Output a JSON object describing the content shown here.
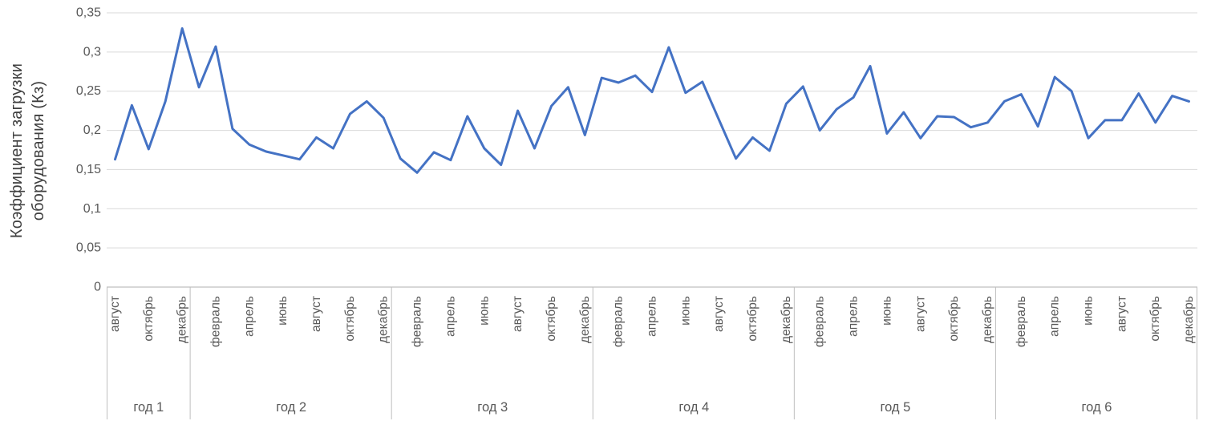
{
  "chart_data": {
    "type": "line",
    "title": "",
    "series_name": "Коэффициент загрузки оборудования",
    "series_color": "#4472C4",
    "grid_color": "#d9d9d9",
    "axis_color": "#bfbfbf",
    "label_color": "#595959",
    "y_axis": {
      "title": "Коэффициент загрузки\nоборудования (Кз)",
      "tick_labels": [
        "0",
        "0,05",
        "0,1",
        "0,15",
        "0,2",
        "0,25",
        "0,3",
        "0,35"
      ],
      "min": 0,
      "max": 0.35,
      "tick_step": 0.05,
      "grid": true
    },
    "x_axis": {
      "groups": [
        {
          "label": "год 1",
          "values": [
            0.163,
            0.232,
            0.176,
            0.237,
            0.33
          ],
          "ticks": [
            {
              "i": 0,
              "t": "август"
            },
            {
              "i": 2,
              "t": "октябрь"
            },
            {
              "i": 4,
              "t": "декабрь"
            }
          ]
        },
        {
          "label": "год 2",
          "values": [
            0.255,
            0.307,
            0.202,
            0.182,
            0.173,
            0.168,
            0.163,
            0.191,
            0.177,
            0.221,
            0.237,
            0.216
          ],
          "ticks": [
            {
              "i": 1,
              "t": "февраль"
            },
            {
              "i": 3,
              "t": "апрель"
            },
            {
              "i": 5,
              "t": "июнь"
            },
            {
              "i": 7,
              "t": "август"
            },
            {
              "i": 9,
              "t": "октябрь"
            },
            {
              "i": 11,
              "t": "декабрь"
            }
          ]
        },
        {
          "label": "год 3",
          "values": [
            0.164,
            0.146,
            0.172,
            0.162,
            0.218,
            0.177,
            0.156,
            0.225,
            0.177,
            0.231,
            0.255,
            0.194
          ],
          "ticks": [
            {
              "i": 1,
              "t": "февраль"
            },
            {
              "i": 3,
              "t": "апрель"
            },
            {
              "i": 5,
              "t": "июнь"
            },
            {
              "i": 7,
              "t": "август"
            },
            {
              "i": 9,
              "t": "октябрь"
            },
            {
              "i": 11,
              "t": "декабрь"
            }
          ]
        },
        {
          "label": "год 4",
          "values": [
            0.267,
            0.261,
            0.27,
            0.249,
            0.306,
            0.248,
            0.262,
            0.213,
            0.164,
            0.191,
            0.174,
            0.234
          ],
          "ticks": [
            {
              "i": 1,
              "t": "февраль"
            },
            {
              "i": 3,
              "t": "апрель"
            },
            {
              "i": 5,
              "t": "июнь"
            },
            {
              "i": 7,
              "t": "август"
            },
            {
              "i": 9,
              "t": "октябрь"
            },
            {
              "i": 11,
              "t": "декабрь"
            }
          ]
        },
        {
          "label": "год 5",
          "values": [
            0.256,
            0.2,
            0.227,
            0.242,
            0.282,
            0.196,
            0.223,
            0.19,
            0.218,
            0.217,
            0.204,
            0.21
          ],
          "ticks": [
            {
              "i": 1,
              "t": "февраль"
            },
            {
              "i": 3,
              "t": "апрель"
            },
            {
              "i": 5,
              "t": "июнь"
            },
            {
              "i": 7,
              "t": "август"
            },
            {
              "i": 9,
              "t": "октябрь"
            },
            {
              "i": 11,
              "t": "декабрь"
            }
          ]
        },
        {
          "label": "год 6",
          "values": [
            0.237,
            0.246,
            0.205,
            0.268,
            0.25,
            0.19,
            0.213,
            0.213,
            0.247,
            0.21,
            0.244,
            0.237
          ],
          "ticks": [
            {
              "i": 1,
              "t": "февраль"
            },
            {
              "i": 3,
              "t": "апрель"
            },
            {
              "i": 5,
              "t": "июнь"
            },
            {
              "i": 7,
              "t": "август"
            },
            {
              "i": 9,
              "t": "октябрь"
            },
            {
              "i": 11,
              "t": "декабрь"
            }
          ]
        }
      ]
    }
  }
}
